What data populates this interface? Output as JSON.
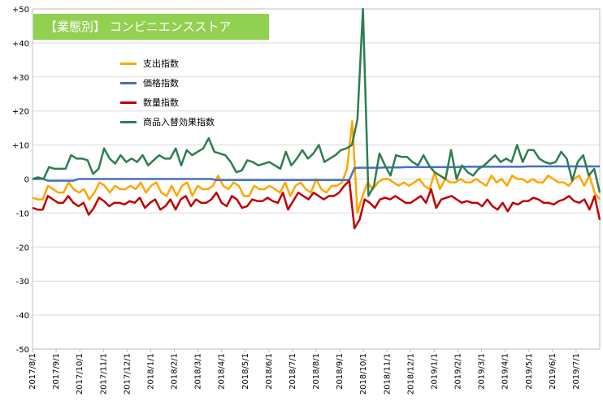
{
  "chart_data": {
    "type": "line",
    "title": "【業態別】 コンビニエンスストア",
    "ylim": [
      -50,
      50
    ],
    "yticks": [
      "+50",
      "+40",
      "+30",
      "+20",
      "+10",
      "0",
      "-10",
      "-20",
      "-30",
      "-40",
      "-50"
    ],
    "xticks": [
      "2017/8/1",
      "2017/9/1",
      "2017/10/1",
      "2017/11/1",
      "2017/12/1",
      "2018/1/1",
      "2018/2/1",
      "2018/3/1",
      "2018/4/1",
      "2018/5/1",
      "2018/6/1",
      "2018/7/1",
      "2018/8/1",
      "2018/9/1",
      "2018/10/1",
      "2018/11/1",
      "2018/12/1",
      "2019/1/1",
      "2019/2/1",
      "2019/3/1",
      "2019/4/1",
      "2019/5/1",
      "2019/6/1",
      "2019/7/1"
    ],
    "grid": true,
    "legend_position": "upper-left",
    "series": [
      {
        "name": "支出指数",
        "color": "#ffa500",
        "values": [
          -5.5,
          -6,
          -6,
          -2,
          -3,
          -4,
          -4,
          -1,
          -3,
          -4,
          -3,
          -6,
          -4,
          -1,
          -2,
          -4,
          -2,
          -3,
          -3,
          -2,
          -3,
          -1,
          -4,
          -2,
          -1,
          -4,
          -5,
          -2,
          -5,
          -2,
          -1,
          -5,
          -2,
          -3,
          -3,
          -2,
          1,
          -2,
          -3,
          -1,
          -2,
          -5,
          -5,
          -2,
          -3,
          -3,
          -2,
          -3,
          -4,
          -1,
          -5,
          -2,
          -1,
          -3,
          -4,
          0,
          -3,
          -4,
          -2,
          -2,
          -1,
          3,
          17,
          -10,
          -5,
          -1,
          -3,
          -1,
          0,
          0,
          -1,
          -2,
          -1,
          -2,
          -1,
          0,
          -2,
          -3,
          2,
          -3,
          0,
          -1,
          -1,
          0,
          -1,
          -1,
          0,
          -1,
          -2,
          1,
          -1,
          0,
          -2,
          1,
          0,
          0,
          -1,
          0,
          -1,
          -1,
          1,
          0,
          -1,
          -1,
          -2,
          0,
          1,
          -2,
          1,
          -4,
          -6
        ]
      },
      {
        "name": "価格指数",
        "color": "#4472c4",
        "values": [
          0,
          0,
          0,
          -0.5,
          -0.5,
          -0.5,
          -0.5,
          -0.5,
          -0.5,
          0,
          0,
          0,
          0,
          0,
          0,
          0,
          0,
          0,
          0,
          0,
          0,
          0,
          0,
          0,
          0,
          0,
          0,
          0,
          0,
          0,
          0,
          0,
          0,
          0,
          0,
          0,
          -0.3,
          -0.3,
          -0.3,
          -0.3,
          -0.3,
          -0.3,
          -0.3,
          -0.3,
          -0.3,
          -0.3,
          -0.3,
          -0.3,
          -0.3,
          -0.3,
          -0.3,
          -0.3,
          -0.3,
          -0.3,
          -0.3,
          -0.3,
          -0.3,
          -0.3,
          -0.3,
          -0.3,
          -0.3,
          -0.3,
          -0.3,
          3.2,
          3.3,
          3.3,
          3.3,
          3.3,
          3.3,
          3.4,
          3.4,
          3.4,
          3.4,
          3.5,
          3.5,
          3.5,
          3.5,
          3.5,
          3.5,
          3.5,
          3.5,
          3.5,
          3.5,
          3.5,
          3.6,
          3.6,
          3.6,
          3.6,
          3.6,
          3.6,
          3.6,
          3.6,
          3.6,
          3.6,
          3.6,
          3.6,
          3.6,
          3.7,
          3.7,
          3.7,
          3.7,
          3.7,
          3.7,
          3.7,
          3.7,
          3.7,
          3.7,
          3.7,
          3.7,
          3.7,
          3.7,
          3.7
        ]
      },
      {
        "name": "数量指数",
        "color": "#c00000",
        "values": [
          -8.5,
          -9,
          -9,
          -5,
          -6,
          -7,
          -7,
          -5,
          -7,
          -8,
          -7,
          -10.5,
          -8.5,
          -5.5,
          -6.5,
          -8,
          -7,
          -7,
          -7.5,
          -6.5,
          -7,
          -5.5,
          -8.5,
          -7,
          -6,
          -9,
          -8,
          -6,
          -9,
          -6,
          -5,
          -8,
          -6,
          -7,
          -7,
          -6,
          -4,
          -7,
          -8,
          -5,
          -6,
          -8.5,
          -8,
          -6,
          -6.5,
          -6.5,
          -5.5,
          -6.5,
          -7,
          -4,
          -9,
          -6.5,
          -4,
          -5,
          -6,
          -4,
          -5,
          -6,
          -5,
          -5,
          -4,
          -2,
          -0.5,
          -14.5,
          -12,
          -6,
          -7,
          -8.5,
          -6,
          -5.5,
          -6,
          -5,
          -6,
          -7,
          -7,
          -6,
          -5,
          -7,
          -3,
          -8.5,
          -6,
          -5.5,
          -5,
          -6,
          -7,
          -6.5,
          -7,
          -7,
          -8,
          -6,
          -8,
          -9,
          -7,
          -9.5,
          -7,
          -7.5,
          -6.5,
          -6.5,
          -5.5,
          -6,
          -7,
          -7,
          -7.5,
          -6.5,
          -6,
          -5,
          -6.5,
          -7,
          -6,
          -9,
          -5,
          -12
        ]
      },
      {
        "name": "商品入替効果指数",
        "color": "#2e7d4f",
        "values": [
          0,
          0.5,
          0,
          3.5,
          3,
          3,
          3,
          7,
          6,
          6,
          5.5,
          1.5,
          3,
          9,
          6,
          4.5,
          7,
          5,
          6,
          5,
          7,
          4,
          5.5,
          7,
          6,
          6,
          9,
          4,
          8.5,
          7,
          8,
          9,
          12,
          8,
          7.5,
          7,
          5,
          2,
          2.5,
          5.5,
          5,
          4,
          4.5,
          5,
          4,
          3,
          8,
          4,
          6,
          8.5,
          6,
          7.5,
          10,
          5,
          6,
          7,
          8.5,
          9,
          10,
          17.5,
          50,
          -5,
          -2,
          7.5,
          4,
          1,
          7,
          6.5,
          6.5,
          5,
          4,
          7,
          4,
          2,
          1,
          0,
          8.5,
          0,
          4,
          2,
          1,
          3,
          4,
          5.5,
          7,
          5,
          6,
          5,
          10,
          5,
          8.5,
          8.5,
          6,
          5,
          4.5,
          5,
          8,
          6,
          -0.5,
          5,
          7,
          1,
          3,
          -4
        ]
      }
    ]
  }
}
